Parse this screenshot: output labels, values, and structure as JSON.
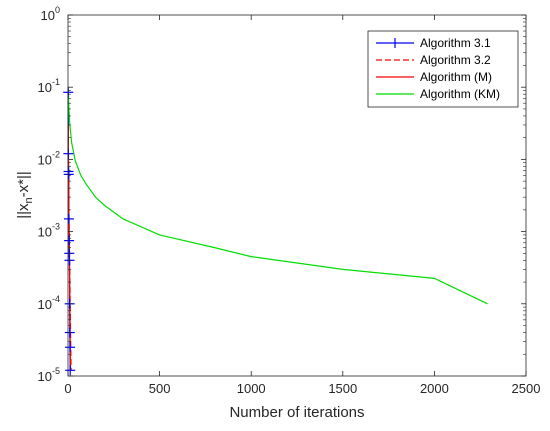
{
  "chart_data": {
    "type": "line",
    "xlabel": "Number of iterations",
    "ylabel_base": "||x",
    "ylabel_sub": "n",
    "ylabel_tail": "-x*||",
    "xlim": [
      0,
      2500
    ],
    "ylim": [
      1e-05,
      1
    ],
    "yscale": "log",
    "grid": false,
    "legend_position": "top-right",
    "x_ticks": [
      {
        "value": 0,
        "label": "0"
      },
      {
        "value": 500,
        "label": "500"
      },
      {
        "value": 1000,
        "label": "1000"
      },
      {
        "value": 1500,
        "label": "1500"
      },
      {
        "value": 2000,
        "label": "2000"
      },
      {
        "value": 2500,
        "label": "2500"
      }
    ],
    "y_ticks": [
      {
        "value": 1e-05,
        "base": "10",
        "exp": "-5"
      },
      {
        "value": 0.0001,
        "base": "10",
        "exp": "-4"
      },
      {
        "value": 0.001,
        "base": "10",
        "exp": "-3"
      },
      {
        "value": 0.01,
        "base": "10",
        "exp": "-2"
      },
      {
        "value": 0.1,
        "base": "10",
        "exp": "-1"
      },
      {
        "value": 1,
        "base": "10",
        "exp": "0"
      }
    ],
    "series": [
      {
        "name": "Algorithm 3.1",
        "color": "#0000ff",
        "dash": "solid",
        "marker": "plus",
        "x": [
          1,
          2,
          3,
          4,
          5,
          6,
          7,
          8,
          9,
          10,
          11,
          12
        ],
        "y": [
          0.085,
          0.012,
          0.0068,
          0.0062,
          0.0015,
          0.00075,
          0.0005,
          0.0004,
          0.0001,
          4e-05,
          2.5e-05,
          1.2e-05
        ]
      },
      {
        "name": "Algorithm 3.2",
        "color": "#ff0000",
        "dash": "dashed",
        "marker": "none",
        "x": [
          1,
          3,
          5,
          8,
          11,
          14,
          17
        ],
        "y": [
          0.03,
          0.008,
          0.002,
          0.0006,
          0.00015,
          4e-05,
          1.2e-05
        ]
      },
      {
        "name": "Algorithm (M)",
        "color": "#ff0000",
        "dash": "solid",
        "marker": "none",
        "x": [
          1,
          3,
          5,
          8,
          10,
          12,
          14
        ],
        "y": [
          0.025,
          0.006,
          0.0015,
          0.0004,
          0.0001,
          3e-05,
          1.2e-05
        ]
      },
      {
        "name": "Algorithm (KM)",
        "color": "#00dd00",
        "dash": "solid",
        "marker": "none",
        "x": [
          1,
          2,
          5,
          10,
          20,
          40,
          70,
          100,
          150,
          200,
          300,
          500,
          800,
          1000,
          1500,
          2000,
          2290
        ],
        "y": [
          0.1,
          0.085,
          0.05,
          0.03,
          0.017,
          0.0095,
          0.006,
          0.0045,
          0.003,
          0.0023,
          0.0015,
          0.0009,
          0.0006,
          0.00045,
          0.0003,
          0.000225,
          0.0001
        ]
      }
    ]
  }
}
